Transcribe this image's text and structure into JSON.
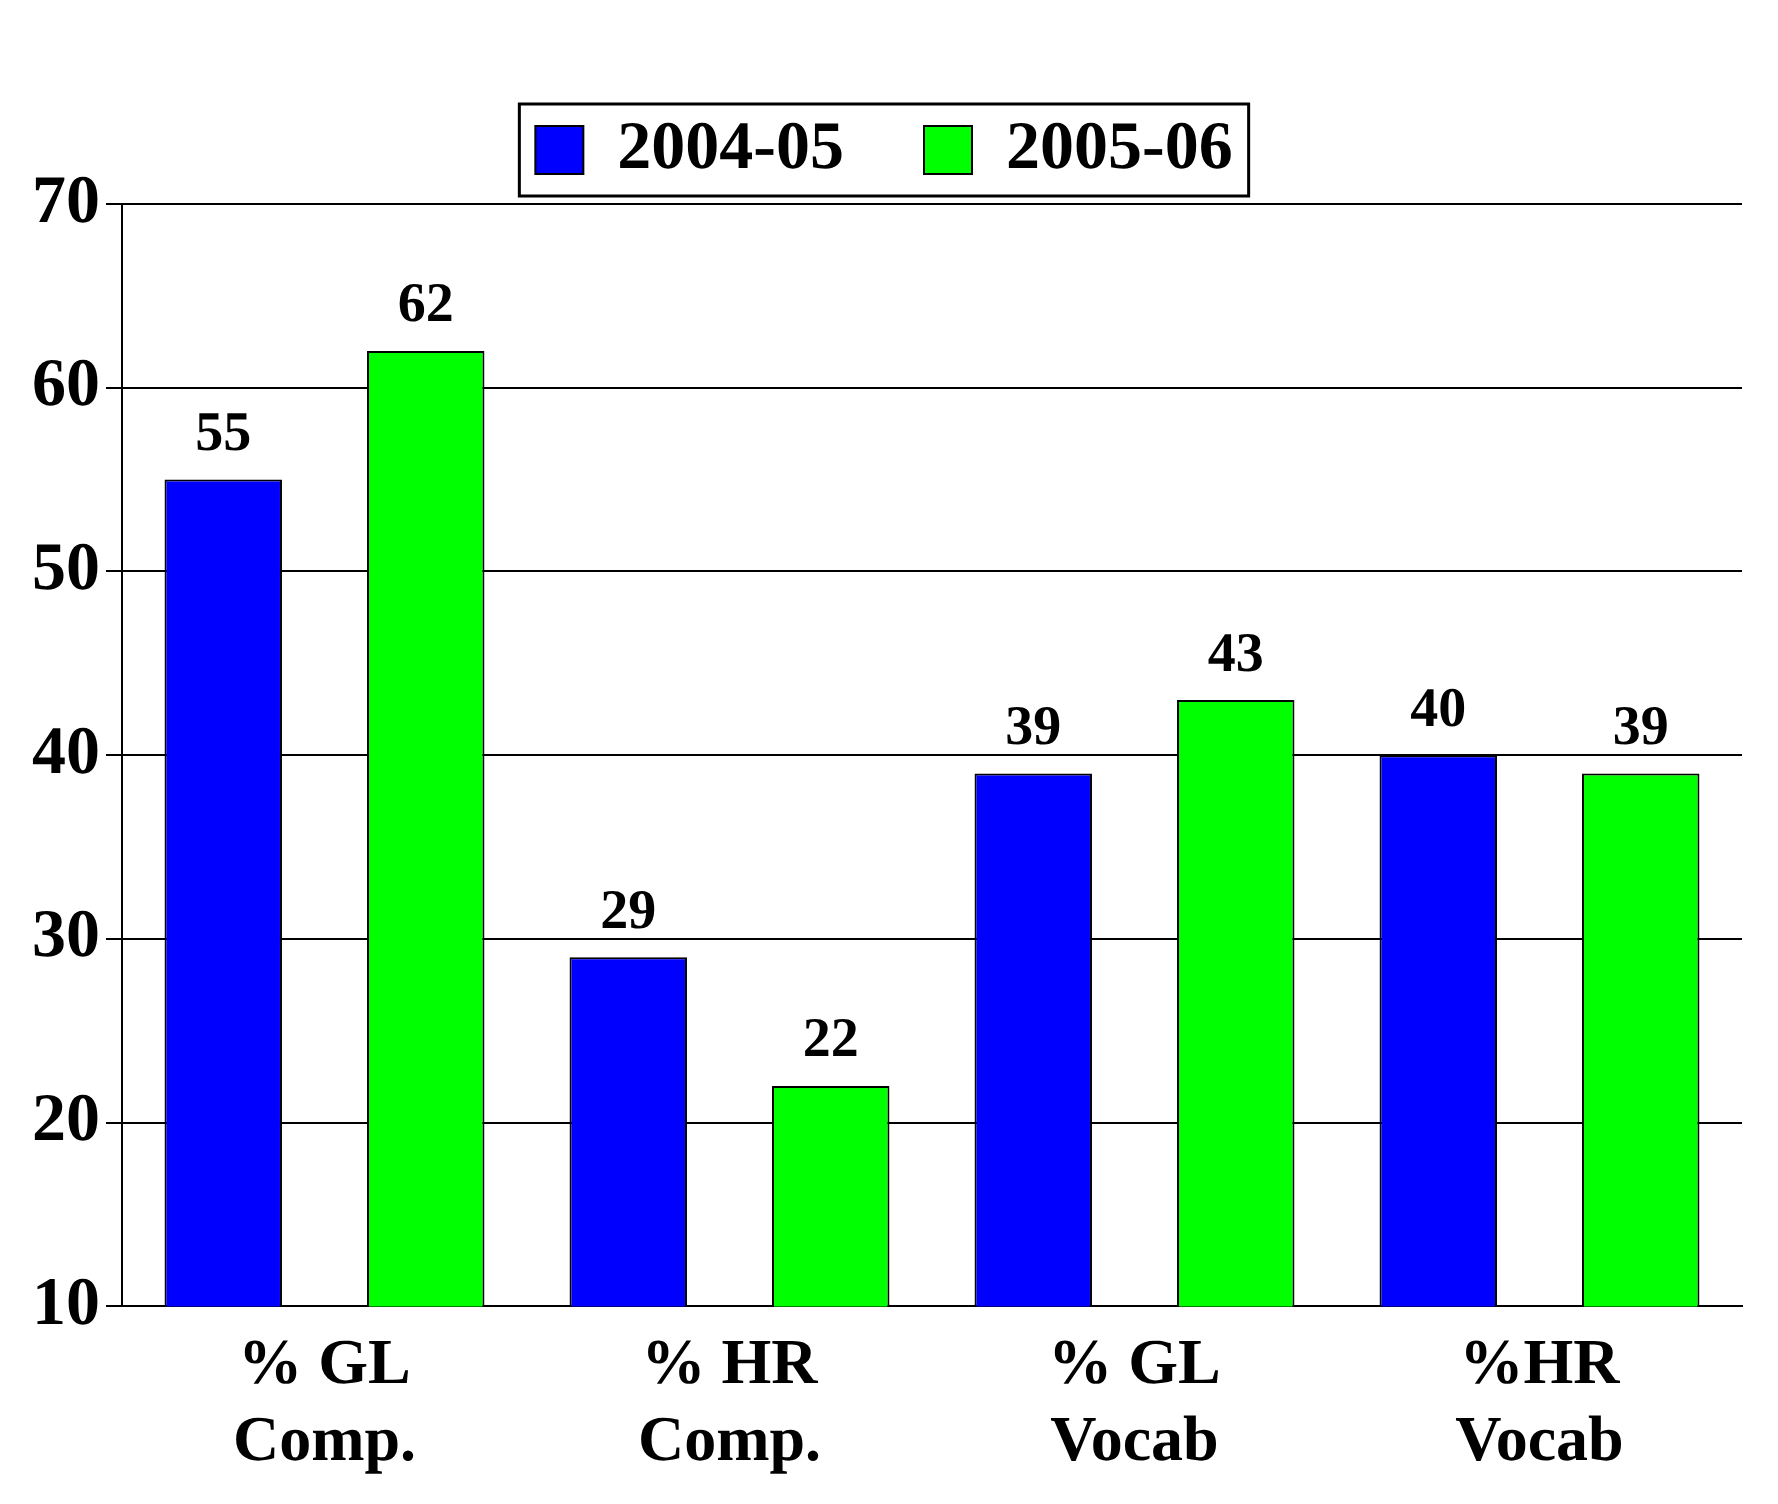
{
  "chart_data": {
    "type": "bar",
    "categories": [
      "% GL Comp.",
      "% HR Comp.",
      "% GL Vocab",
      "%HR Vocab"
    ],
    "series": [
      {
        "name": "2004-05",
        "color": "#0000ff",
        "values": [
          55,
          29,
          39,
          40
        ]
      },
      {
        "name": "2005-06",
        "color": "#00ff00",
        "values": [
          62,
          22,
          43,
          39
        ]
      }
    ],
    "ylim": [
      10,
      70
    ],
    "yticks": [
      10,
      20,
      30,
      40,
      50,
      60,
      70
    ],
    "grid": "y",
    "legend": "top",
    "data_labels": true
  }
}
